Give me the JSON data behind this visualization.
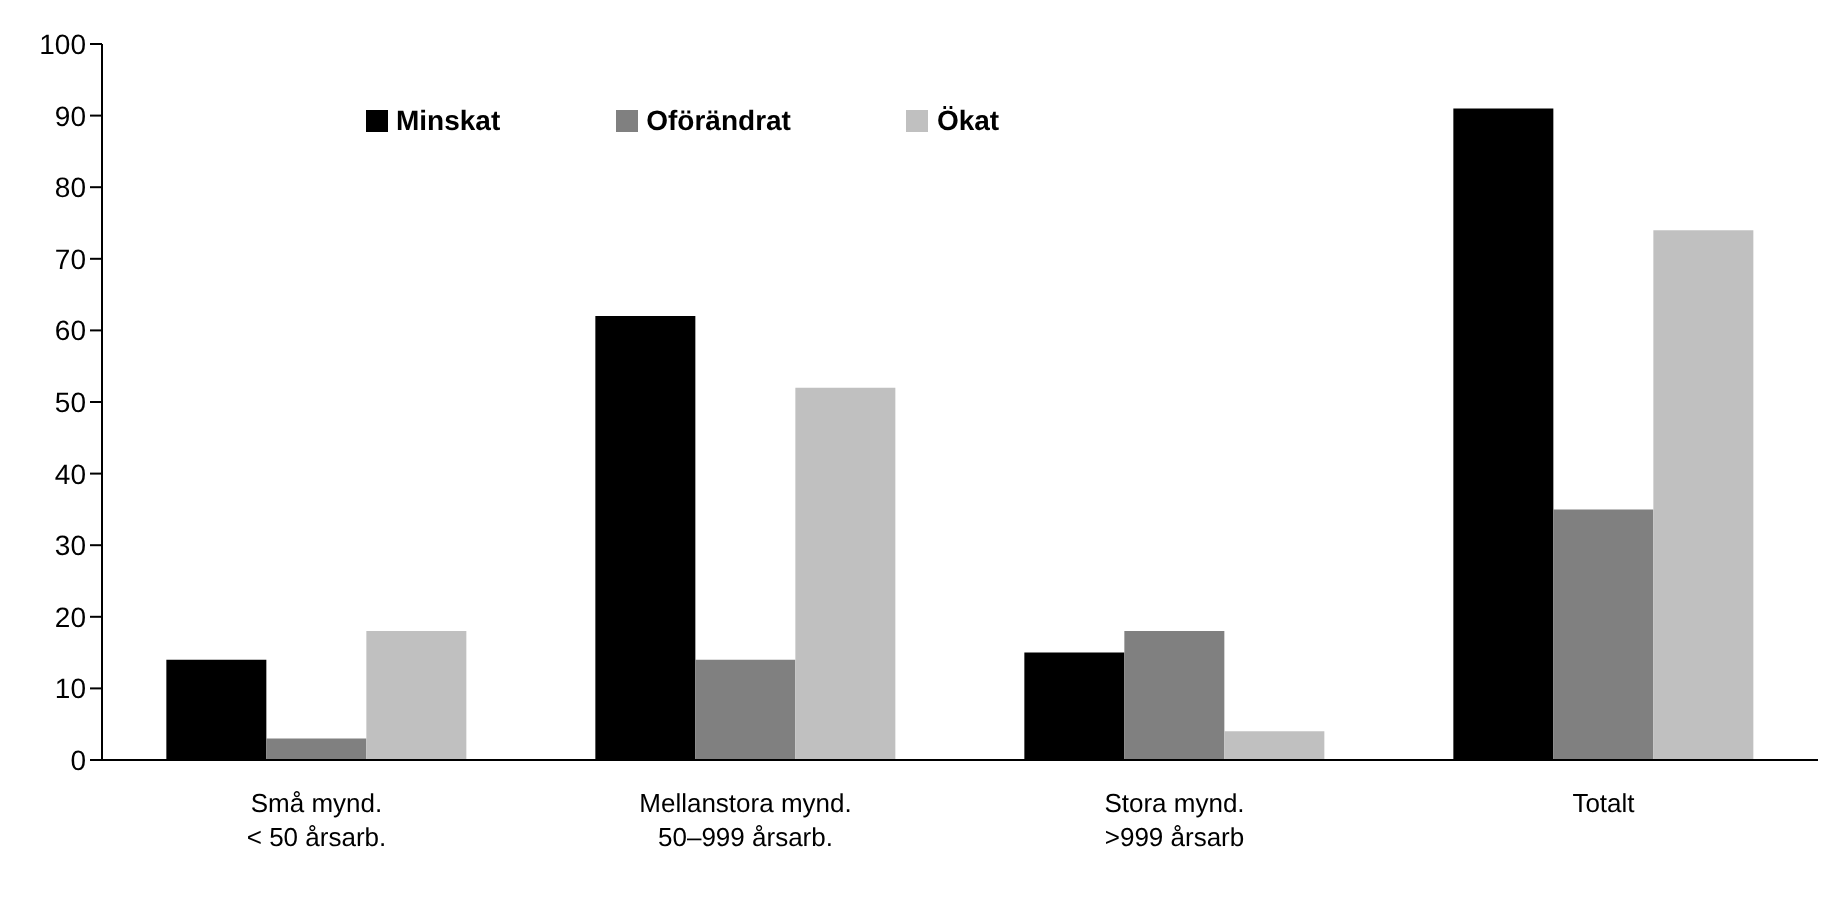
{
  "chart_data": {
    "type": "bar",
    "categories": [
      "Små mynd.\n< 50 årsarb.",
      "Mellanstora mynd.\n50–999 årsarb.",
      "Stora mynd.\n>999 årsarb",
      "Totalt"
    ],
    "series": [
      {
        "name": "Minskat",
        "color": "#000000",
        "values": [
          14,
          62,
          15,
          91
        ]
      },
      {
        "name": "Oförändrat",
        "color": "#808080",
        "values": [
          3,
          14,
          18,
          35
        ]
      },
      {
        "name": "Ökat",
        "color": "#c0c0c0",
        "values": [
          18,
          52,
          4,
          74
        ]
      }
    ],
    "ylim": [
      0,
      100
    ],
    "yticks": [
      0,
      10,
      20,
      30,
      40,
      50,
      60,
      70,
      80,
      90,
      100
    ],
    "grid": false,
    "legend": "top"
  }
}
